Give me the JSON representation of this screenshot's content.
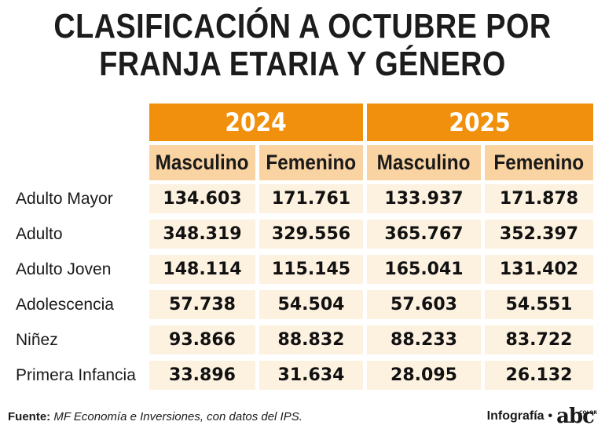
{
  "title_line1": "CLASIFICACIÓN A OCTUBRE POR",
  "title_line2": "FRANJA ETARIA Y GÉNERO",
  "chart_data": {
    "type": "table",
    "years": [
      "2024",
      "2025"
    ],
    "columns": [
      "Masculino",
      "Femenino",
      "Masculino",
      "Femenino"
    ],
    "rows": [
      {
        "label": "Adulto Mayor",
        "values": [
          "134.603",
          "171.761",
          "133.937",
          "171.878"
        ]
      },
      {
        "label": "Adulto",
        "values": [
          "348.319",
          "329.556",
          "365.767",
          "352.397"
        ]
      },
      {
        "label": "Adulto Joven",
        "values": [
          "148.114",
          "115.145",
          "165.041",
          "131.402"
        ]
      },
      {
        "label": "Adolescencia",
        "values": [
          "57.738",
          "54.504",
          "57.603",
          "54.551"
        ]
      },
      {
        "label": "Niñez",
        "values": [
          "93.866",
          "88.832",
          "88.233",
          "83.722"
        ]
      },
      {
        "label": "Primera Infancia",
        "values": [
          "33.896",
          "31.634",
          "28.095",
          "26.132"
        ]
      }
    ]
  },
  "source_label": "Fuente:",
  "source_text": "MF Economía e Inversiones, con datos del IPS.",
  "credit_label": "Infografía",
  "credit_sep": "•",
  "logo_text": "abc",
  "logo_subtext": "COLOR",
  "colors": {
    "year_header": "#f0900c",
    "gender_header": "#fad3a2",
    "cell_bg": "#fdf1e0"
  }
}
